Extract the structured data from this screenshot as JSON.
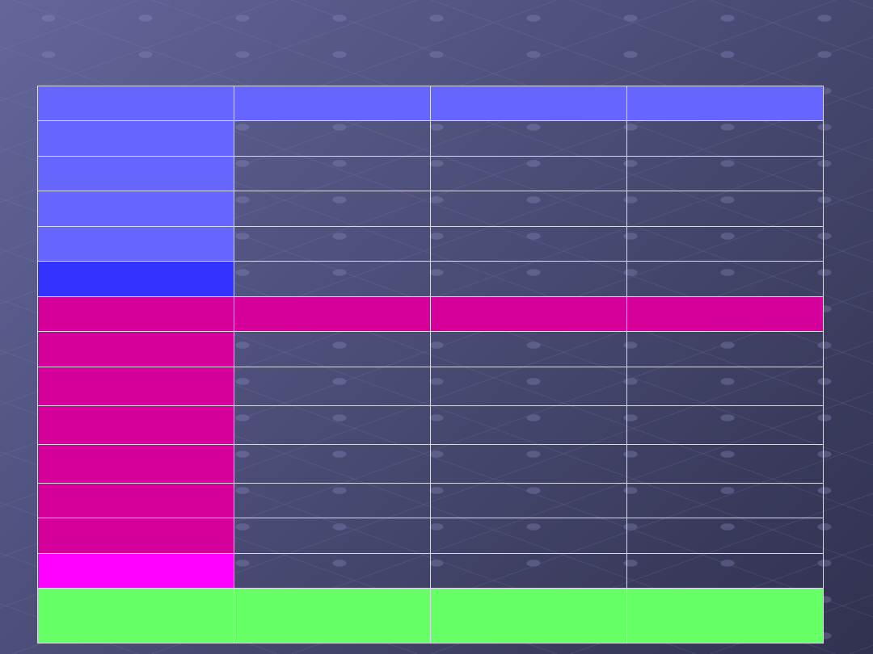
{
  "table": {
    "columns": 4,
    "rows": [
      {
        "first": "#6666ff",
        "rest": "#6666ff"
      },
      {
        "first": "#6666ff",
        "rest": ""
      },
      {
        "first": "#6666ff",
        "rest": ""
      },
      {
        "first": "#6666ff",
        "rest": ""
      },
      {
        "first": "#6666ff",
        "rest": ""
      },
      {
        "first": "#3333ff",
        "rest": ""
      },
      {
        "first": "#d5009a",
        "rest": "#d5009a"
      },
      {
        "first": "#d5009a",
        "rest": ""
      },
      {
        "first": "#d5009a",
        "rest": ""
      },
      {
        "first": "#d5009a",
        "rest": ""
      },
      {
        "first": "#d5009a",
        "rest": ""
      },
      {
        "first": "#d5009a",
        "rest": ""
      },
      {
        "first": "#d5009a",
        "rest": ""
      },
      {
        "first": "#ff00ff",
        "rest": ""
      },
      {
        "first": "#66ff66",
        "rest": "#66ff66"
      }
    ]
  }
}
